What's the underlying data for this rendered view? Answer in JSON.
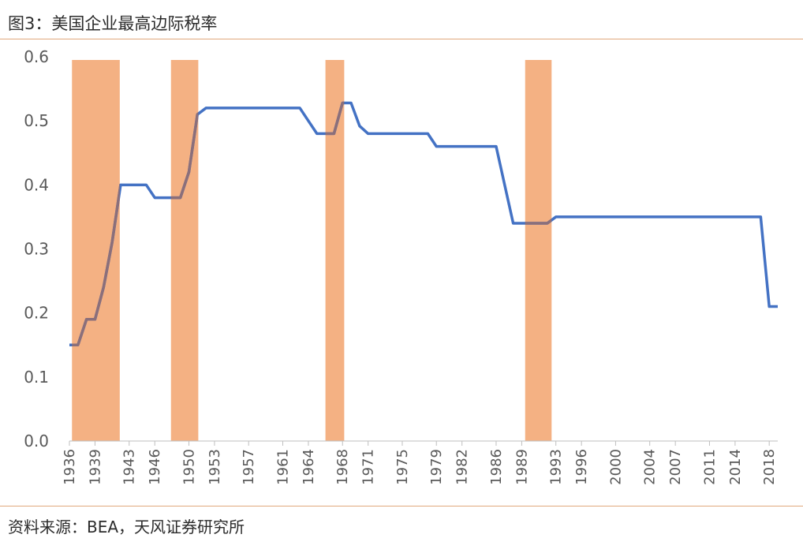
{
  "header": {
    "title": "图3：美国企业最高边际税率"
  },
  "footer": {
    "source": "资料来源：BEA，天风证券研究所"
  },
  "chart_data": {
    "type": "line",
    "title": "图3：美国企业最高边际税率",
    "xlabel": "",
    "ylabel": "",
    "ylim": [
      0,
      0.6
    ],
    "yticks": [
      "0.0",
      "0.1",
      "0.2",
      "0.3",
      "0.4",
      "0.5",
      "0.6"
    ],
    "xlim": [
      1936,
      2019
    ],
    "xticks": [
      "1936",
      "1939",
      "1943",
      "1946",
      "1950",
      "1953",
      "1957",
      "1961",
      "1964",
      "1968",
      "1971",
      "1975",
      "1979",
      "1982",
      "1986",
      "1989",
      "1993",
      "1996",
      "2000",
      "2004",
      "2007",
      "2011",
      "2014",
      "2018"
    ],
    "grid": false,
    "colors": {
      "line": "#4472c4",
      "shade": "#f4b183",
      "overlap_line": "#8b6f7a"
    },
    "shaded_periods": [
      {
        "start": 1936.3,
        "end": 1941.9
      },
      {
        "start": 1947.9,
        "end": 1951.1
      },
      {
        "start": 1966.0,
        "end": 1968.2
      },
      {
        "start": 1989.4,
        "end": 1992.5
      }
    ],
    "series": [
      {
        "x": [
          1936,
          1937,
          1938,
          1939,
          1940,
          1941,
          1942,
          1943,
          1944,
          1945,
          1946,
          1947,
          1948,
          1949,
          1950,
          1951,
          1952,
          1953,
          1954,
          1955,
          1956,
          1957,
          1958,
          1959,
          1960,
          1961,
          1962,
          1963,
          1964,
          1965,
          1966,
          1967,
          1968,
          1969,
          1970,
          1971,
          1972,
          1973,
          1974,
          1975,
          1976,
          1977,
          1978,
          1979,
          1980,
          1981,
          1982,
          1983,
          1984,
          1985,
          1986,
          1987,
          1988,
          1989,
          1990,
          1991,
          1992,
          1993,
          1994,
          1995,
          1996,
          1997,
          1998,
          1999,
          2000,
          2001,
          2002,
          2003,
          2004,
          2005,
          2006,
          2007,
          2008,
          2009,
          2010,
          2011,
          2012,
          2013,
          2014,
          2015,
          2016,
          2017,
          2018,
          2019
        ],
        "values": [
          0.15,
          0.15,
          0.19,
          0.19,
          0.24,
          0.31,
          0.4,
          0.4,
          0.4,
          0.4,
          0.38,
          0.38,
          0.38,
          0.38,
          0.42,
          0.51,
          0.52,
          0.52,
          0.52,
          0.52,
          0.52,
          0.52,
          0.52,
          0.52,
          0.52,
          0.52,
          0.52,
          0.52,
          0.5,
          0.48,
          0.48,
          0.48,
          0.528,
          0.528,
          0.492,
          0.48,
          0.48,
          0.48,
          0.48,
          0.48,
          0.48,
          0.48,
          0.48,
          0.46,
          0.46,
          0.46,
          0.46,
          0.46,
          0.46,
          0.46,
          0.46,
          0.4,
          0.34,
          0.34,
          0.34,
          0.34,
          0.34,
          0.35,
          0.35,
          0.35,
          0.35,
          0.35,
          0.35,
          0.35,
          0.35,
          0.35,
          0.35,
          0.35,
          0.35,
          0.35,
          0.35,
          0.35,
          0.35,
          0.35,
          0.35,
          0.35,
          0.35,
          0.35,
          0.35,
          0.35,
          0.35,
          0.35,
          0.21,
          0.21
        ]
      }
    ]
  }
}
